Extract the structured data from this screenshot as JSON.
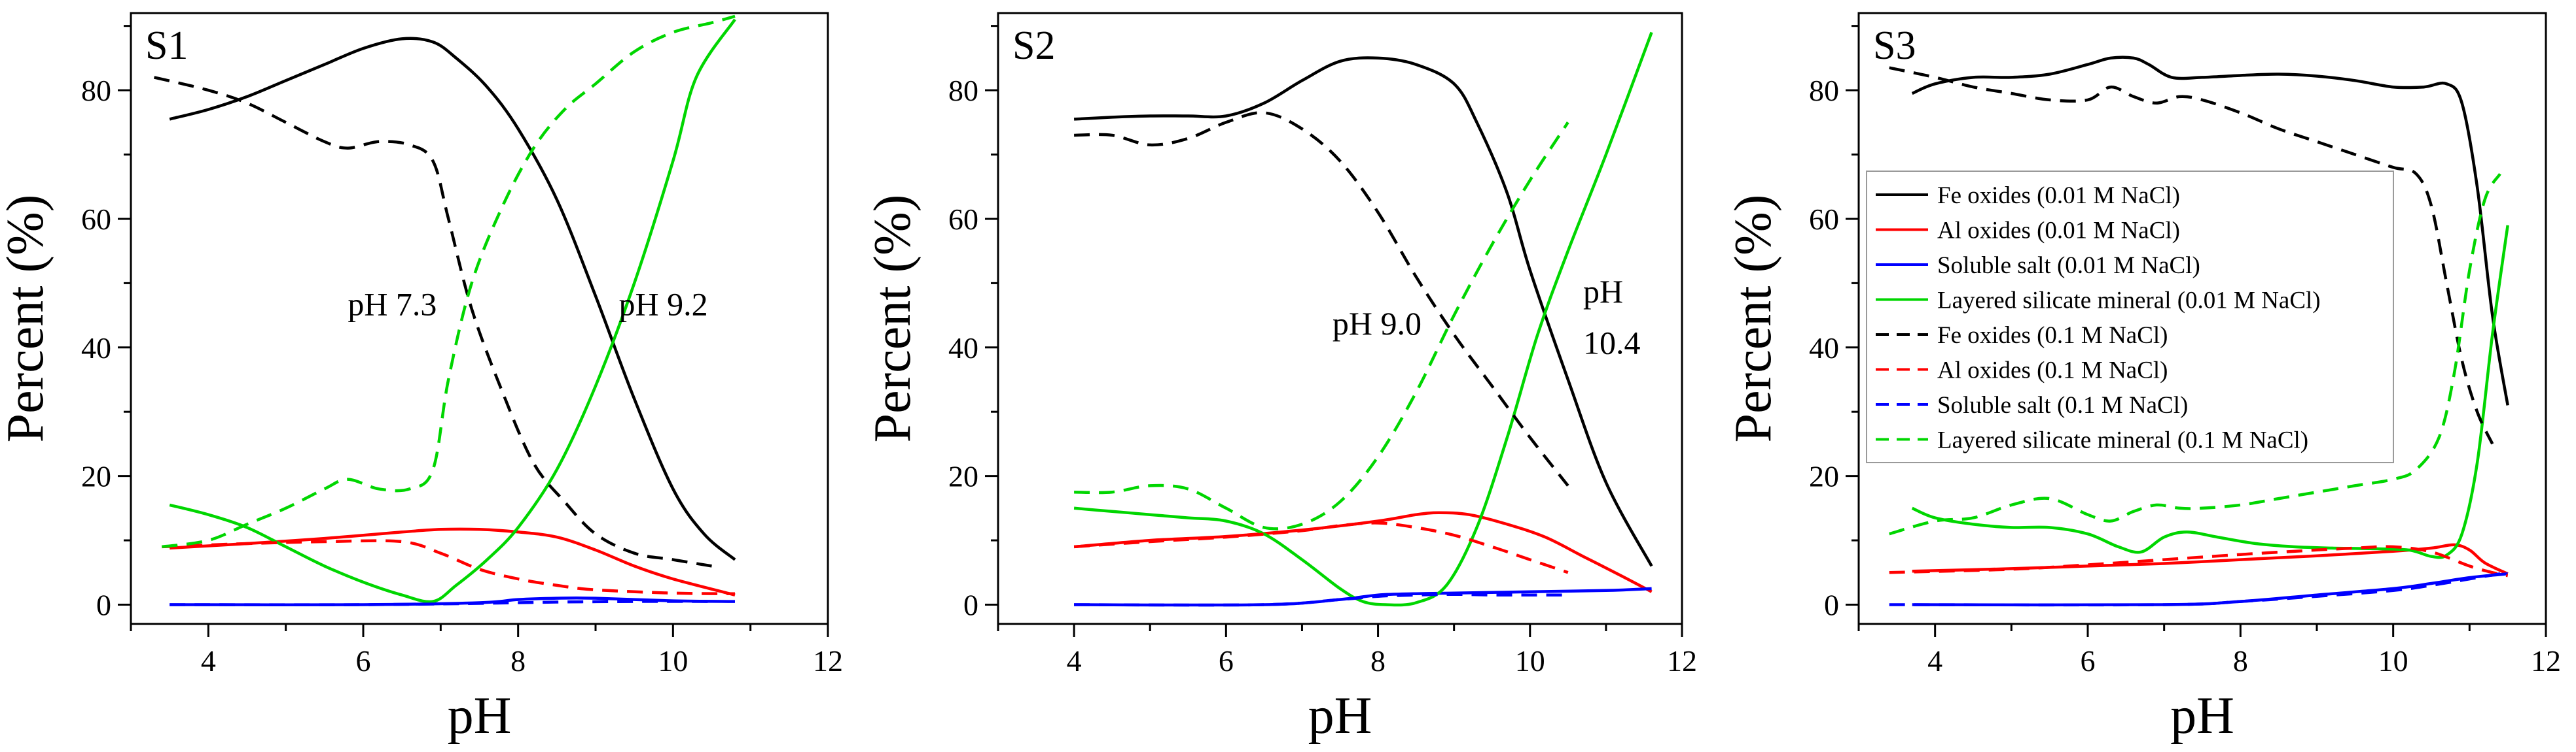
{
  "chart_data": [
    {
      "type": "line",
      "panel_label": "S1",
      "xlabel": "pH",
      "ylabel": "Percent (%)",
      "xlim": [
        3,
        12
      ],
      "ylim": [
        -3,
        92
      ],
      "xticks": [
        "4",
        "6",
        "8",
        "10",
        "12"
      ],
      "yticks": [
        "0",
        "20",
        "40",
        "60",
        "80"
      ],
      "annotations": [
        {
          "text": "pH 7.3",
          "x": 5.8,
          "y": 45
        },
        {
          "text": "pH 9.2",
          "x": 9.3,
          "y": 45
        }
      ],
      "series": [
        {
          "name": "Fe oxides (0.01 M NaCl)",
          "color": "#000000",
          "dash": "solid",
          "x": [
            3.5,
            4,
            4.5,
            5,
            5.5,
            6,
            6.5,
            6.9,
            7.2,
            7.6,
            8,
            8.5,
            9,
            9.5,
            10,
            10.4,
            10.8
          ],
          "y": [
            75.5,
            77,
            79,
            81.5,
            84,
            86.5,
            88,
            87.5,
            85,
            80.5,
            74,
            63,
            48,
            32,
            18,
            11,
            7
          ]
        },
        {
          "name": "Al oxides (0.01 M NaCl)",
          "color": "#ff0000",
          "dash": "solid",
          "x": [
            3.5,
            4.5,
            5.5,
            6.5,
            7,
            7.5,
            8,
            8.5,
            9,
            9.5,
            10,
            10.8
          ],
          "y": [
            8.8,
            9.5,
            10.3,
            11.3,
            11.7,
            11.7,
            11.3,
            10.5,
            8.5,
            6,
            4,
            1.5
          ]
        },
        {
          "name": "Soluble salt (0.01 M NaCl)",
          "color": "#0000ff",
          "dash": "solid",
          "x": [
            3.5,
            6,
            7.5,
            8,
            8.5,
            9,
            10,
            10.8
          ],
          "y": [
            0,
            0,
            0.3,
            0.8,
            1,
            1,
            0.6,
            0.5
          ]
        },
        {
          "name": "Layered silicate mineral (0.01 M NaCl)",
          "color": "#00d600",
          "dash": "solid",
          "x": [
            3.5,
            4,
            4.5,
            5,
            5.5,
            6,
            6.5,
            6.9,
            7.2,
            7.6,
            8,
            8.5,
            9,
            9.5,
            10,
            10.3,
            10.8
          ],
          "y": [
            15.5,
            14,
            12,
            9,
            6,
            3.5,
            1.5,
            0.5,
            3,
            7,
            12,
            21,
            34,
            50,
            69,
            82,
            91
          ]
        },
        {
          "name": "Fe oxides (0.1 M NaCl)",
          "color": "#000000",
          "dash": "dashed",
          "x": [
            3.3,
            4,
            4.5,
            5,
            5.5,
            5.8,
            6.2,
            6.6,
            6.9,
            7.1,
            7.4,
            7.8,
            8.2,
            8.6,
            9,
            9.5,
            10,
            10.5
          ],
          "y": [
            82,
            80,
            78,
            75,
            72,
            71,
            72,
            71.5,
            69,
            60,
            46,
            33,
            22,
            16,
            11,
            8,
            7,
            6
          ]
        },
        {
          "name": "Al oxides (0.1 M NaCl)",
          "color": "#ff0000",
          "dash": "dashed",
          "x": [
            3.4,
            4.5,
            5.5,
            6.5,
            7,
            7.5,
            8,
            8.5,
            9,
            10,
            10.8
          ],
          "y": [
            9,
            9.5,
            9.8,
            9.8,
            8,
            5.5,
            4,
            3,
            2.3,
            1.8,
            1.7
          ]
        },
        {
          "name": "Soluble salt (0.1 M NaCl)",
          "color": "#0000ff",
          "dash": "dashed",
          "x": [
            3.5,
            6,
            7.5,
            8.5,
            9.5,
            10.5
          ],
          "y": [
            0,
            0,
            0.2,
            0.4,
            0.5,
            0.5
          ]
        },
        {
          "name": "Layered silicate mineral (0.1 M NaCl)",
          "color": "#00d600",
          "dash": "dashed",
          "x": [
            3.4,
            4,
            4.5,
            5,
            5.5,
            5.8,
            6.2,
            6.6,
            6.9,
            7.1,
            7.4,
            7.8,
            8.2,
            8.6,
            9,
            9.5,
            10,
            10.5,
            10.8
          ],
          "y": [
            9,
            10,
            12.5,
            15,
            18,
            19.5,
            18,
            18,
            21,
            35,
            50,
            62,
            71,
            77,
            81,
            86,
            89,
            90.5,
            91.5
          ]
        }
      ]
    },
    {
      "type": "line",
      "panel_label": "S2",
      "xlabel": "pH",
      "ylabel": "Percent (%)",
      "xlim": [
        3,
        12
      ],
      "ylim": [
        -3,
        92
      ],
      "xticks": [
        "4",
        "6",
        "8",
        "10",
        "12"
      ],
      "yticks": [
        "0",
        "20",
        "40",
        "60",
        "80"
      ],
      "annotations": [
        {
          "text": "pH 9.0",
          "x": 7.4,
          "y": 42
        },
        {
          "text": "pH",
          "x": 10.7,
          "y": 47
        },
        {
          "text": "10.4",
          "x": 10.7,
          "y": 39
        }
      ],
      "series": [
        {
          "name": "Fe oxides (0.01 M NaCl)",
          "color": "#000000",
          "dash": "solid",
          "x": [
            4,
            4.5,
            5,
            5.5,
            6,
            6.5,
            7,
            7.5,
            8,
            8.5,
            9,
            9.3,
            9.7,
            10,
            10.5,
            11,
            11.6
          ],
          "y": [
            75.5,
            75.8,
            76,
            76,
            76,
            78,
            81.5,
            84.5,
            85,
            84,
            81,
            75,
            64,
            52,
            35,
            19,
            6
          ]
        },
        {
          "name": "Al oxides (0.01 M NaCl)",
          "color": "#ff0000",
          "dash": "solid",
          "x": [
            4,
            5,
            6,
            7,
            8,
            8.5,
            8.8,
            9.2,
            9.7,
            10.2,
            10.7,
            11.2,
            11.6
          ],
          "y": [
            9,
            10,
            10.6,
            11.6,
            13,
            14,
            14.3,
            14,
            12.5,
            10.5,
            7.5,
            4.5,
            2
          ]
        },
        {
          "name": "Soluble salt (0.01 M NaCl)",
          "color": "#0000ff",
          "dash": "solid",
          "x": [
            4,
            6.5,
            7.5,
            8,
            8.5,
            9,
            10,
            11,
            11.6
          ],
          "y": [
            0,
            0,
            0.8,
            1.5,
            1.7,
            1.8,
            2,
            2.2,
            2.5
          ]
        },
        {
          "name": "Layered silicate mineral (0.01 M NaCl)",
          "color": "#00d600",
          "dash": "solid",
          "x": [
            4,
            4.5,
            5,
            5.5,
            6,
            6.5,
            7,
            7.5,
            7.8,
            8.1,
            8.5,
            8.9,
            9.3,
            9.7,
            10.1,
            10.5,
            11,
            11.6
          ],
          "y": [
            15,
            14.5,
            14,
            13.5,
            13,
            11,
            7,
            2.5,
            0.5,
            0,
            0.3,
            3,
            12,
            26,
            42,
            55,
            70,
            89
          ]
        },
        {
          "name": "Fe oxides (0.1 M NaCl)",
          "color": "#000000",
          "dash": "dashed",
          "x": [
            4,
            4.5,
            5,
            5.5,
            6,
            6.5,
            7,
            7.5,
            8,
            8.5,
            9,
            9.5,
            10,
            10.5
          ],
          "y": [
            73,
            73,
            71.5,
            72.5,
            75,
            76.5,
            74,
            69,
            61,
            51,
            42,
            34,
            26,
            18.5
          ]
        },
        {
          "name": "Al oxides (0.1 M NaCl)",
          "color": "#ff0000",
          "dash": "dashed",
          "x": [
            4,
            5,
            6,
            7,
            7.5,
            8,
            8.5,
            9,
            9.5,
            10,
            10.5
          ],
          "y": [
            9,
            9.8,
            10.5,
            11.5,
            12.3,
            12.7,
            12,
            10.8,
            9,
            7,
            5
          ]
        },
        {
          "name": "Soluble salt (0.1 M NaCl)",
          "color": "#0000ff",
          "dash": "dashed",
          "x": [
            4,
            6.5,
            7.5,
            8,
            8.5,
            9,
            9.5,
            10,
            10.5
          ],
          "y": [
            0,
            0,
            0.8,
            1.3,
            1.5,
            1.6,
            1.5,
            1.5,
            1.5
          ]
        },
        {
          "name": "Layered silicate mineral (0.1 M NaCl)",
          "color": "#00d600",
          "dash": "dashed",
          "x": [
            4,
            4.5,
            5,
            5.5,
            6,
            6.5,
            7,
            7.5,
            8,
            8.5,
            9,
            9.5,
            10,
            10.5
          ],
          "y": [
            17.5,
            17.5,
            18.5,
            18,
            15,
            12,
            12.5,
            16,
            23,
            33,
            45,
            56,
            66,
            75
          ]
        }
      ]
    },
    {
      "type": "line",
      "panel_label": "S3",
      "xlabel": "pH",
      "ylabel": "Percent (%)",
      "xlim": [
        3,
        12
      ],
      "ylim": [
        -3,
        92
      ],
      "xticks": [
        "4",
        "6",
        "8",
        "10",
        "12"
      ],
      "yticks": [
        "0",
        "20",
        "40",
        "60",
        "80"
      ],
      "annotations": [],
      "legend": "top-left",
      "series": [
        {
          "name": "Fe oxides (0.01 M NaCl)",
          "color": "#000000",
          "dash": "solid",
          "x": [
            3.7,
            4,
            4.5,
            5,
            5.5,
            6,
            6.3,
            6.6,
            6.8,
            7.1,
            7.5,
            8,
            8.5,
            9,
            9.5,
            10,
            10.4,
            10.7,
            10.9,
            11.1,
            11.3,
            11.5
          ],
          "y": [
            79.5,
            81,
            82,
            82,
            82.5,
            84,
            85,
            85,
            84,
            82,
            82,
            82.3,
            82.5,
            82.2,
            81.5,
            80.5,
            80.5,
            81,
            78,
            65,
            45,
            31
          ]
        },
        {
          "name": "Al oxides (0.01 M NaCl)",
          "color": "#ff0000",
          "dash": "solid",
          "x": [
            3.7,
            5,
            6,
            7,
            8,
            9,
            10,
            10.5,
            10.8,
            11,
            11.2,
            11.5
          ],
          "y": [
            5.2,
            5.6,
            6,
            6.4,
            7,
            7.6,
            8.3,
            8.8,
            9.3,
            8.5,
            6.5,
            4.8
          ]
        },
        {
          "name": "Soluble salt (0.01 M NaCl)",
          "color": "#0000ff",
          "dash": "solid",
          "x": [
            3.7,
            7,
            8,
            9,
            10,
            10.5,
            11,
            11.5
          ],
          "y": [
            0,
            0,
            0.5,
            1.5,
            2.5,
            3.3,
            4.2,
            4.8
          ]
        },
        {
          "name": "Layered silicate mineral (0.01 M NaCl)",
          "color": "#00d600",
          "dash": "solid",
          "x": [
            3.7,
            4,
            4.5,
            5,
            5.5,
            6,
            6.4,
            6.7,
            7,
            7.3,
            7.7,
            8.2,
            8.7,
            9.2,
            9.7,
            10.2,
            10.5,
            10.7,
            10.9,
            11.1,
            11.3,
            11.5
          ],
          "y": [
            15,
            13.5,
            12.5,
            12,
            12,
            11,
            9,
            8.2,
            10.5,
            11.3,
            10.5,
            9.5,
            9,
            8.8,
            8.7,
            8.5,
            7.5,
            7.7,
            11,
            22,
            42,
            59
          ]
        },
        {
          "name": "Fe oxides (0.1 M NaCl)",
          "color": "#000000",
          "dash": "dashed",
          "x": [
            3.4,
            4,
            4.5,
            5,
            5.5,
            6,
            6.3,
            6.6,
            6.9,
            7.2,
            7.5,
            8,
            8.5,
            9,
            9.5,
            10,
            10.3,
            10.5,
            10.7,
            10.9,
            11.1,
            11.3
          ],
          "y": [
            83.5,
            82,
            80.5,
            79.5,
            78.5,
            78.5,
            80.5,
            79,
            78,
            79,
            78.5,
            76.5,
            74,
            72,
            70,
            68,
            67,
            62,
            50,
            38,
            30,
            25
          ]
        },
        {
          "name": "Al oxides (0.1 M NaCl)",
          "color": "#ff0000",
          "dash": "dashed",
          "x": [
            3.4,
            5,
            6,
            7,
            8,
            9,
            9.5,
            10,
            10.5,
            11,
            11.3,
            11.5
          ],
          "y": [
            5,
            5.5,
            6.2,
            7,
            7.8,
            8.5,
            8.8,
            9,
            8.2,
            6,
            5,
            4.5
          ]
        },
        {
          "name": "Soluble salt (0.1 M NaCl)",
          "color": "#0000ff",
          "dash": "dashed",
          "x": [
            3.4,
            7,
            8,
            9,
            10,
            10.5,
            11,
            11.5
          ],
          "y": [
            0,
            0,
            0.5,
            1.3,
            2.2,
            3,
            4,
            5
          ]
        },
        {
          "name": "Layered silicate mineral (0.1 M NaCl)",
          "color": "#00d600",
          "dash": "dashed",
          "x": [
            3.4,
            4,
            4.5,
            5,
            5.5,
            6,
            6.3,
            6.6,
            6.9,
            7.2,
            7.5,
            8,
            8.5,
            9,
            9.5,
            10,
            10.3,
            10.6,
            10.8,
            11,
            11.2,
            11.4
          ],
          "y": [
            11,
            13,
            13.5,
            15.5,
            16.5,
            14,
            13,
            14.5,
            15.5,
            15,
            15,
            15.5,
            16.5,
            17.5,
            18.5,
            19.5,
            21,
            26,
            36,
            52,
            63,
            67
          ]
        }
      ]
    }
  ]
}
